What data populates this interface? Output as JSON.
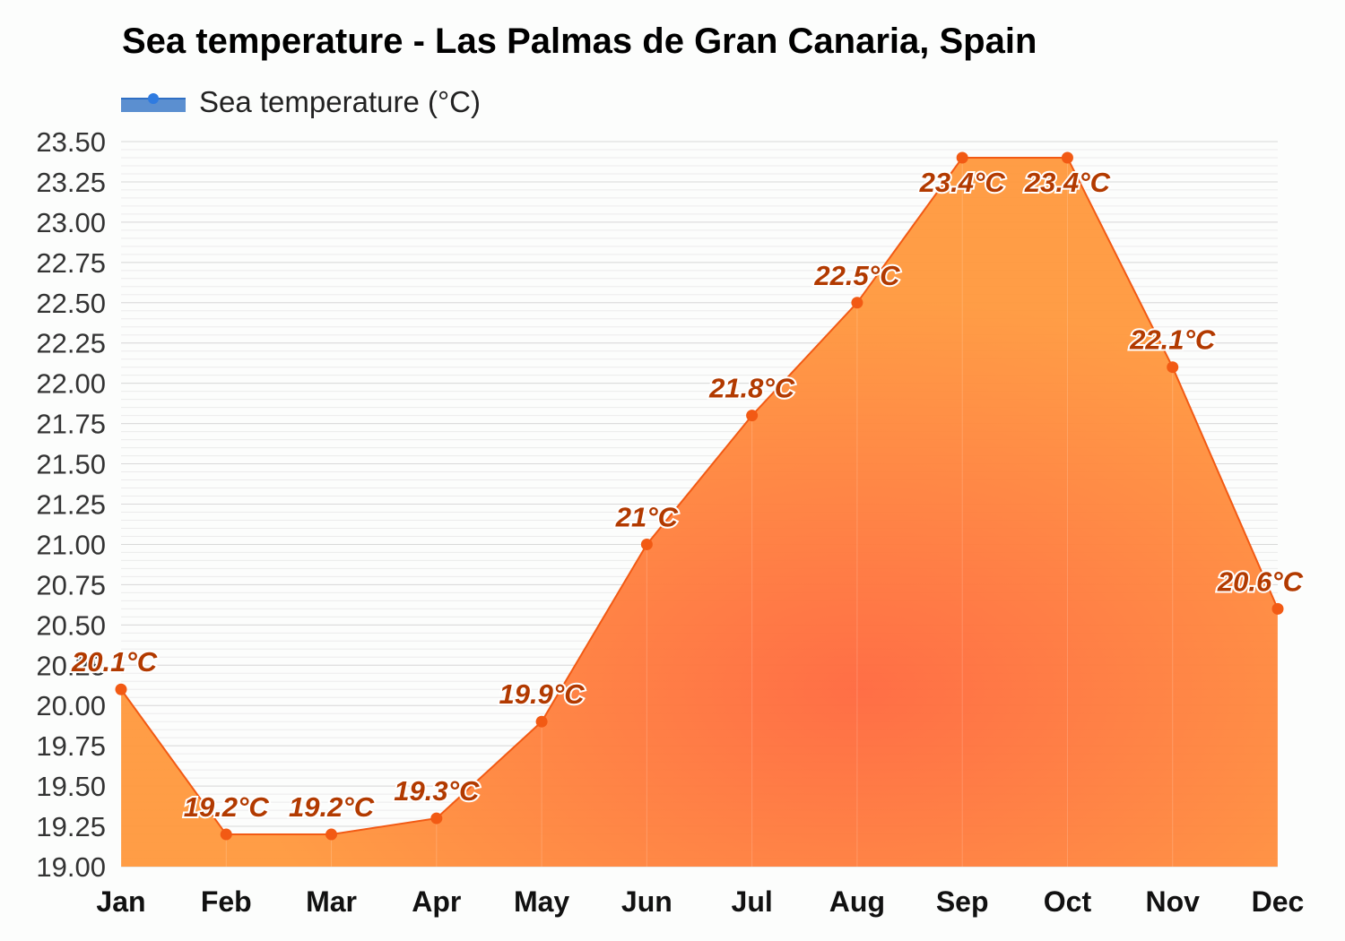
{
  "chart_data": {
    "type": "area",
    "title": "Sea temperature - Las Palmas de Gran Canaria, Spain",
    "legend": {
      "position": "top-left",
      "entries": [
        "Sea temperature (°C)"
      ]
    },
    "categories": [
      "Jan",
      "Feb",
      "Mar",
      "Apr",
      "May",
      "Jun",
      "Jul",
      "Aug",
      "Sep",
      "Oct",
      "Nov",
      "Dec"
    ],
    "series": [
      {
        "name": "Sea temperature (°C)",
        "values": [
          20.1,
          19.2,
          19.2,
          19.3,
          19.9,
          21.0,
          21.8,
          22.5,
          23.4,
          23.4,
          22.1,
          20.6
        ],
        "data_labels": [
          "20.1°C",
          "19.2°C",
          "19.2°C",
          "19.3°C",
          "19.9°C",
          "21°C",
          "21.8°C",
          "22.5°C",
          "23.4°C",
          "23.4°C",
          "22.1°C",
          "20.6°C"
        ]
      }
    ],
    "ylim": [
      19.0,
      23.5
    ],
    "yticks": [
      "19.00",
      "19.25",
      "19.50",
      "19.75",
      "20.00",
      "20.25",
      "20.50",
      "20.75",
      "21.00",
      "21.25",
      "21.50",
      "21.75",
      "22.00",
      "22.25",
      "22.50",
      "22.75",
      "23.00",
      "23.25",
      "23.50"
    ],
    "grid": true,
    "colors": {
      "line": "#f25a14",
      "marker": "#f25a14",
      "fill_light": "#ff9a40",
      "fill_dark": "#ff6a40",
      "label": "#b23a00",
      "legend": "#4f86c6"
    }
  }
}
